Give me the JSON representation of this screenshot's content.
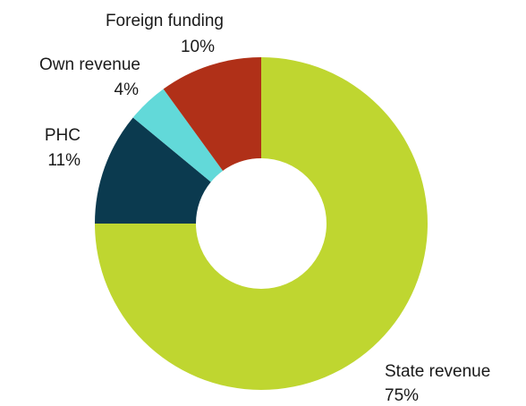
{
  "chart_data": {
    "type": "donut",
    "categories": [
      "State revenue",
      "PHC",
      "Own revenue",
      "Foreign funding"
    ],
    "values": [
      75,
      11,
      4,
      10
    ],
    "value_labels": [
      "75%",
      "11%",
      "4%",
      "10%"
    ],
    "colors": [
      "#bfd630",
      "#0b3a4f",
      "#62d9d9",
      "#b03018"
    ]
  }
}
